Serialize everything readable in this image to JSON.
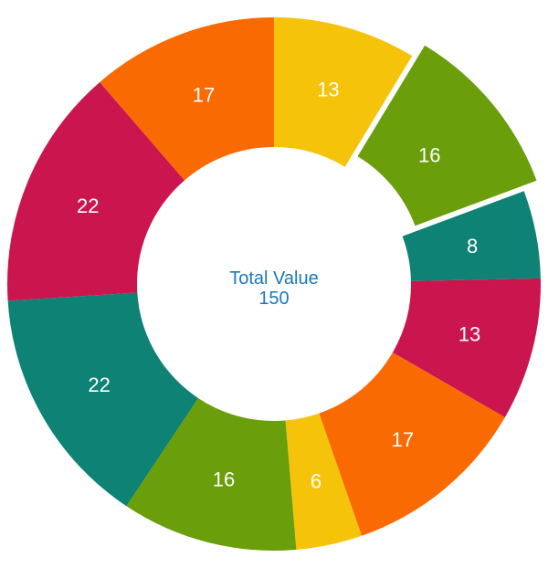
{
  "chart_data": {
    "type": "pie",
    "subtype": "doughnut",
    "title": "",
    "center_label": {
      "title": "Total Value",
      "value": "150"
    },
    "total": 150,
    "start_angle_deg": 0,
    "direction": "clockwise",
    "labels_shown": "values-inside-slices",
    "label_color": "#FFFFFF",
    "center_text_color": "#1878BE",
    "background_color": "#FFFFFF",
    "legend": "none",
    "slices": [
      {
        "value": 13,
        "color": "#F5C40A",
        "exploded": false
      },
      {
        "value": 16,
        "color": "#6A9E0A",
        "exploded": true
      },
      {
        "value": 8,
        "color": "#0E8274",
        "exploded": false
      },
      {
        "value": 13,
        "color": "#CA154E",
        "exploded": false
      },
      {
        "value": 17,
        "color": "#F96A02",
        "exploded": false
      },
      {
        "value": 6,
        "color": "#F5C40A",
        "exploded": false
      },
      {
        "value": 16,
        "color": "#6A9E0A",
        "exploded": false
      },
      {
        "value": 22,
        "color": "#0E8274",
        "exploded": false
      },
      {
        "value": 22,
        "color": "#CA154E",
        "exploded": false
      },
      {
        "value": 17,
        "color": "#F96A02",
        "exploded": false
      }
    ]
  }
}
